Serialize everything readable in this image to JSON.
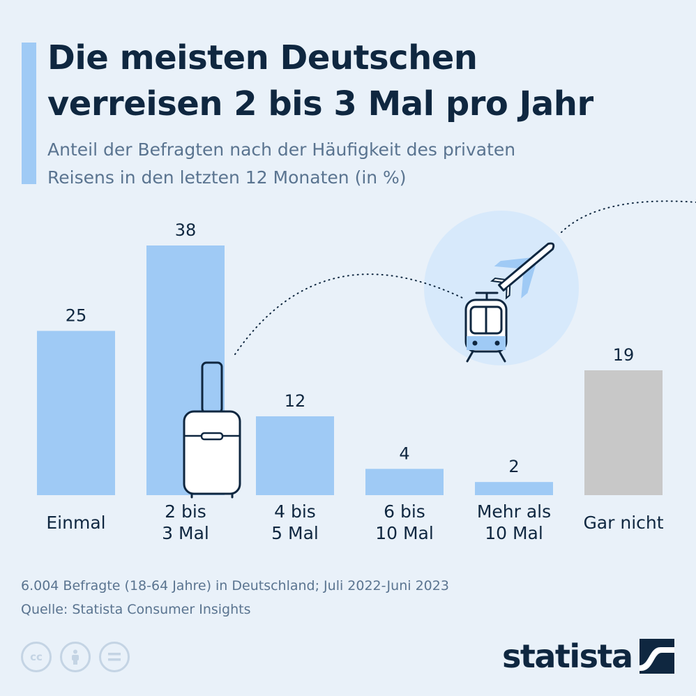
{
  "header": {
    "title_line1": "Die meisten Deutschen",
    "title_line2": "verreisen 2 bis 3 Mal pro Jahr",
    "subtitle_line1": "Anteil der Befragten nach der Häufigkeit des privaten",
    "subtitle_line2": "Reisens in den letzten 12 Monaten (in %)"
  },
  "chart_data": {
    "type": "bar",
    "title": "Die meisten Deutschen verreisen 2 bis 3 Mal pro Jahr",
    "subtitle": "Anteil der Befragten nach der Häufigkeit des privaten Reisens in den letzten 12 Monaten (in %)",
    "categories": [
      [
        "Einmal"
      ],
      [
        "2 bis",
        "3 Mal"
      ],
      [
        "4 bis",
        "5 Mal"
      ],
      [
        "6 bis",
        "10 Mal"
      ],
      [
        "Mehr als",
        "10 Mal"
      ],
      [
        "Gar nicht"
      ]
    ],
    "values": [
      25,
      38,
      12,
      4,
      2,
      19
    ],
    "bar_colors": [
      "#9fcaf5",
      "#9fcaf5",
      "#9fcaf5",
      "#9fcaf5",
      "#9fcaf5",
      "#c8c8c8"
    ],
    "ylim": [
      0,
      38
    ],
    "grid": false,
    "xlabel": "",
    "ylabel": ""
  },
  "footer": {
    "note": "6.004 Befragte (18-64 Jahre) in Deutschland; Juli 2022-Juni 2023",
    "source": "Quelle: Statista Consumer Insights",
    "license_icons": [
      "cc-icon",
      "person-icon",
      "equals-icon"
    ],
    "logo_text": "statista"
  },
  "colors": {
    "background": "#e9f1f9",
    "accent": "#9fcaf5",
    "title": "#0f2740",
    "muted": "#5a7490",
    "neutral_bar": "#c8c8c8",
    "circle": "#d7e9fb"
  }
}
